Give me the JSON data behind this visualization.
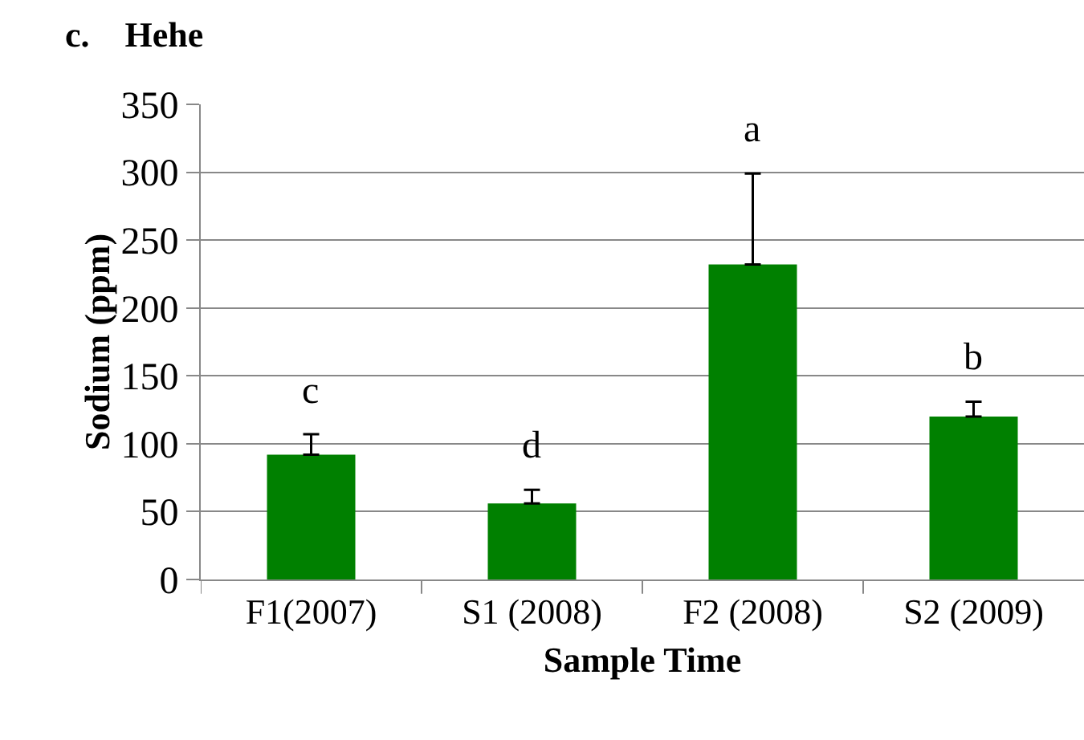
{
  "chart_data": {
    "type": "bar",
    "title": "c.    Hehe",
    "xlabel": "Sample Time",
    "ylabel": "Sodium (ppm)",
    "categories": [
      "F1(2007)",
      "S1 (2008)",
      "F2 (2008)",
      "S2 (2009)"
    ],
    "values": [
      92,
      56,
      232,
      120
    ],
    "color": "#008000",
    "errors": [
      [
        92,
        107
      ],
      [
        56,
        66
      ],
      [
        232,
        299
      ],
      [
        120,
        131
      ]
    ],
    "ylim": [
      0,
      350
    ],
    "yticks": [
      0,
      50,
      100,
      150,
      200,
      250,
      300,
      350
    ],
    "grid": "y",
    "annotations": [
      "c",
      "d",
      "a",
      "b"
    ]
  }
}
